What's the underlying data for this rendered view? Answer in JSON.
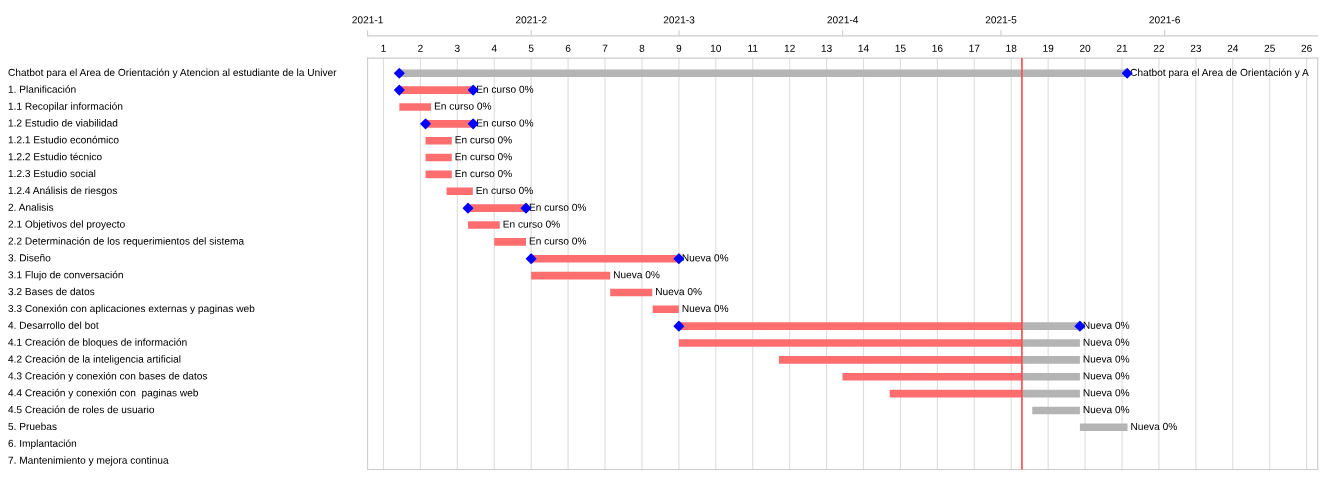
{
  "chart_data": {
    "type": "bar",
    "orientation": "horizontal",
    "categories": [
      "Chatbot para el Area de Orientación y Atencion al estudiante de la Univer",
      "1. Planificación",
      "1.1 Recopilar información",
      "1.2 Estudio de viabilidad",
      "1.2.1 Estudio económico",
      "1.2.2 Estudio técnico",
      "1.2.3 Estudio social",
      "1.2.4 Análisis de riesgos",
      "2. Analisis",
      "2.1 Objetivos del proyecto",
      "2.2 Determinación de los requerimientos del sistema",
      "3. Diseño",
      "3.1 Flujo de conversación",
      "3.2 Bases de datos",
      "3.3 Conexión con aplicaciones externas y paginas web",
      "4. Desarrollo del bot",
      "4.1 Creación de bloques de información",
      "4.2 Creación de la inteligencia artificial",
      "4.3 Creación y conexión con bases de datos",
      "4.4 Creación y conexión con  paginas web",
      "4.5 Creación de roles de usuario",
      "5. Pruebas",
      "6. Implantación",
      "7. Mantenimiento y mejora continua"
    ],
    "series": [
      {
        "color": "#ff6e6e",
        "base": [
          null,
          1.43,
          1.43,
          2.14,
          2.14,
          2.14,
          2.14,
          2.71,
          3.29,
          3.29,
          4.0,
          5.0,
          5.0,
          7.14,
          8.29,
          9.0,
          9.0,
          11.71,
          13.43,
          14.71,
          null,
          null,
          null,
          null
        ],
        "values": [
          null,
          2.0,
          0.86,
          1.29,
          0.71,
          0.71,
          0.71,
          0.71,
          1.57,
          0.86,
          0.86,
          4.0,
          2.14,
          1.14,
          0.71,
          9.29,
          9.29,
          6.58,
          4.86,
          3.58,
          null,
          null,
          null,
          null
        ],
        "value_labels": [
          null,
          "En curso 0%",
          "En curso 0%",
          "En curso 0%",
          "En curso 0%",
          "En curso 0%",
          "En curso 0%",
          "En curso 0%",
          "En curso 0%",
          "En curso 0%",
          "En curso 0%",
          "Nueva 0%",
          "Nueva 0%",
          "Nueva 0%",
          "Nueva 0%",
          null,
          null,
          null,
          null,
          null,
          null,
          null,
          null,
          null
        ]
      },
      {
        "color": "#b4b4b4",
        "base": [
          1.43,
          null,
          null,
          null,
          null,
          null,
          null,
          null,
          null,
          null,
          null,
          null,
          null,
          null,
          null,
          18.29,
          18.29,
          18.29,
          18.29,
          18.29,
          18.57,
          19.86,
          null,
          null
        ],
        "values": [
          19.71,
          null,
          null,
          null,
          null,
          null,
          null,
          null,
          null,
          null,
          null,
          null,
          null,
          null,
          null,
          1.57,
          1.57,
          1.57,
          1.57,
          1.57,
          1.29,
          1.29,
          null,
          null
        ],
        "value_labels": [
          "Chatbot para el Area de Orientación y A",
          null,
          null,
          null,
          null,
          null,
          null,
          null,
          null,
          null,
          null,
          null,
          null,
          null,
          null,
          "Nueva 0%",
          "Nueva 0%",
          "Nueva 0%",
          "Nueva 0%",
          "Nueva 0%",
          "Nueva 0%",
          "Nueva 0%",
          null,
          null
        ]
      },
      {
        "type": "scatter",
        "marker": "diamond",
        "color": "#0000ff",
        "x": [
          "Chatbot para el Area de Orientación y Atencion al estudiante de la Univer",
          "Chatbot para el Area de Orientación y Atencion al estudiante de la Univer",
          "1. Planificación",
          "1. Planificación",
          "1.2 Estudio de viabilidad",
          "1.2 Estudio de viabilidad",
          "2. Analisis",
          "2. Analisis",
          "3. Diseño",
          "3. Diseño",
          "4. Desarrollo del bot",
          "4. Desarrollo del bot"
        ],
        "values": [
          1.43,
          21.14,
          1.43,
          3.43,
          2.14,
          3.43,
          3.29,
          4.86,
          5.0,
          9.0,
          9.0,
          19.86
        ]
      }
    ],
    "xlim": [
      0.57,
      26.3
    ],
    "xticks": [
      1,
      2,
      3,
      4,
      5,
      6,
      7,
      8,
      9,
      10,
      11,
      12,
      13,
      14,
      15,
      16,
      17,
      18,
      19,
      20,
      21,
      22,
      23,
      24,
      25,
      26
    ],
    "x2lim": [
      "2021-01-01",
      "2021-06-30"
    ],
    "x2ticks": [
      {
        "value": "2021-01",
        "label": "2021-1"
      },
      {
        "value": "2021-02",
        "label": "2021-2"
      },
      {
        "value": "2021-03",
        "label": "2021-3"
      },
      {
        "value": "2021-04",
        "label": "2021-4"
      },
      {
        "value": "2021-05",
        "label": "2021-5"
      },
      {
        "value": "2021-06",
        "label": "2021-6"
      }
    ],
    "ref_lines": [
      {
        "axis": "x",
        "value": 18.29,
        "color": "#ff4d4d"
      }
    ],
    "grid": "x"
  }
}
